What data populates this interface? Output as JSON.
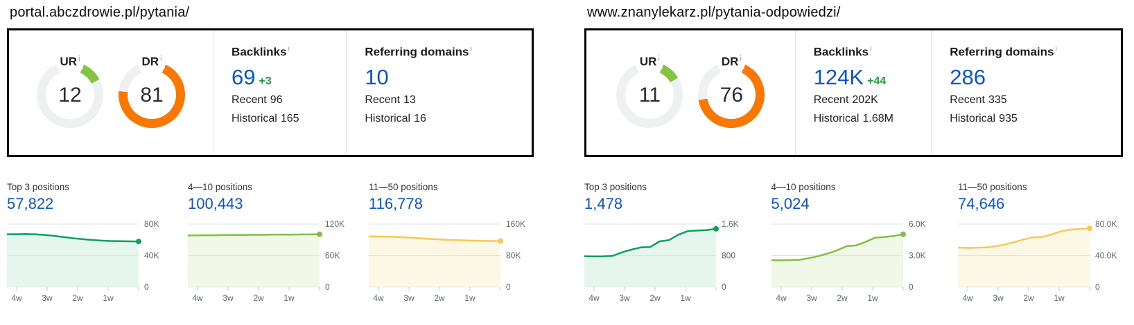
{
  "shared": {
    "info_glyph": "i"
  },
  "sites": [
    {
      "url": "portal.abczdrowie.pl/pytania/",
      "gauges": [
        {
          "label": "UR",
          "value": 12,
          "display": "12",
          "color": "#85c440"
        },
        {
          "label": "DR",
          "value": 81,
          "display": "81",
          "color": "#f97802"
        }
      ],
      "metrics": [
        {
          "title": "Backlinks",
          "value": "69",
          "delta": "+3",
          "lines": [
            {
              "label": "Recent",
              "value": "96"
            },
            {
              "label": "Historical",
              "value": "165"
            }
          ]
        },
        {
          "title": "Referring domains",
          "value": "10",
          "delta": "",
          "lines": [
            {
              "label": "Recent",
              "value": "13"
            },
            {
              "label": "Historical",
              "value": "16"
            }
          ]
        }
      ],
      "charts": [
        {
          "type": "area",
          "title": "Top 3 positions",
          "value": "57,822",
          "color": "#0ca05f",
          "fill": "#e6f5ee",
          "vmax": 80000,
          "yticks": [
            "80K",
            "40K",
            "0"
          ],
          "xticks": [
            "4w",
            "3w",
            "2w",
            "1w"
          ],
          "points": [
            67000,
            67200,
            67300,
            67000,
            66200,
            65000,
            63500,
            62000,
            60800,
            59800,
            59000,
            58500,
            58200,
            58000,
            57822
          ]
        },
        {
          "type": "area",
          "title": "4—10 positions",
          "value": "100,443",
          "color": "#7fbf45",
          "fill": "#f1f8e8",
          "vmax": 120000,
          "yticks": [
            "120K",
            "60K",
            "0"
          ],
          "xticks": [
            "4w",
            "3w",
            "2w",
            "1w"
          ],
          "points": [
            98300,
            98400,
            98600,
            98800,
            99000,
            99100,
            99300,
            99500,
            99600,
            99800,
            99900,
            100000,
            100200,
            100300,
            100443
          ]
        },
        {
          "type": "area",
          "title": "11—50 positions",
          "value": "116,778",
          "color": "#f9c851",
          "fill": "#fdf8e6",
          "vmax": 160000,
          "yticks": [
            "160K",
            "80K",
            "0"
          ],
          "xticks": [
            "4w",
            "3w",
            "2w",
            "1w"
          ],
          "points": [
            128500,
            128300,
            128000,
            127300,
            126000,
            124500,
            123000,
            121500,
            120300,
            119300,
            118500,
            117800,
            117300,
            117000,
            116778
          ]
        }
      ]
    },
    {
      "url": "www.znanylekarz.pl/pytania-odpowiedzi/",
      "gauges": [
        {
          "label": "UR",
          "value": 11,
          "display": "11",
          "color": "#85c440"
        },
        {
          "label": "DR",
          "value": 76,
          "display": "76",
          "color": "#f97802"
        }
      ],
      "metrics": [
        {
          "title": "Backlinks",
          "value": "124K",
          "delta": "+44",
          "lines": [
            {
              "label": "Recent",
              "value": "202K"
            },
            {
              "label": "Historical",
              "value": "1.68M"
            }
          ]
        },
        {
          "title": "Referring domains",
          "value": "286",
          "delta": "",
          "lines": [
            {
              "label": "Recent",
              "value": "335"
            },
            {
              "label": "Historical",
              "value": "935"
            }
          ]
        }
      ],
      "charts": [
        {
          "type": "area",
          "title": "Top 3 positions",
          "value": "1,478",
          "color": "#0ca05f",
          "fill": "#e6f5ee",
          "vmax": 1600,
          "yticks": [
            "1.6K",
            "800",
            "0"
          ],
          "xticks": [
            "4w",
            "3w",
            "2w",
            "1w"
          ],
          "points": [
            780,
            775,
            778,
            790,
            880,
            950,
            1005,
            1015,
            1160,
            1190,
            1330,
            1420,
            1435,
            1445,
            1478
          ]
        },
        {
          "type": "area",
          "title": "4—10 positions",
          "value": "5,024",
          "color": "#7fbf45",
          "fill": "#f1f8e8",
          "vmax": 6000,
          "yticks": [
            "6.0K",
            "3.0K",
            "0"
          ],
          "xticks": [
            "4w",
            "3w",
            "2w",
            "1w"
          ],
          "points": [
            2550,
            2540,
            2555,
            2590,
            2750,
            2950,
            3200,
            3500,
            3900,
            3960,
            4300,
            4700,
            4760,
            4860,
            5024
          ]
        },
        {
          "type": "area",
          "title": "11—50 positions",
          "value": "74,646",
          "color": "#f9c851",
          "fill": "#fdf8e6",
          "vmax": 80000,
          "yticks": [
            "80.0K",
            "40.0K",
            "0"
          ],
          "xticks": [
            "4w",
            "3w",
            "2w",
            "1w"
          ],
          "points": [
            50000,
            49700,
            49900,
            50300,
            51800,
            54000,
            57000,
            60500,
            63000,
            63600,
            67000,
            71000,
            73000,
            73800,
            74646
          ]
        }
      ]
    }
  ]
}
